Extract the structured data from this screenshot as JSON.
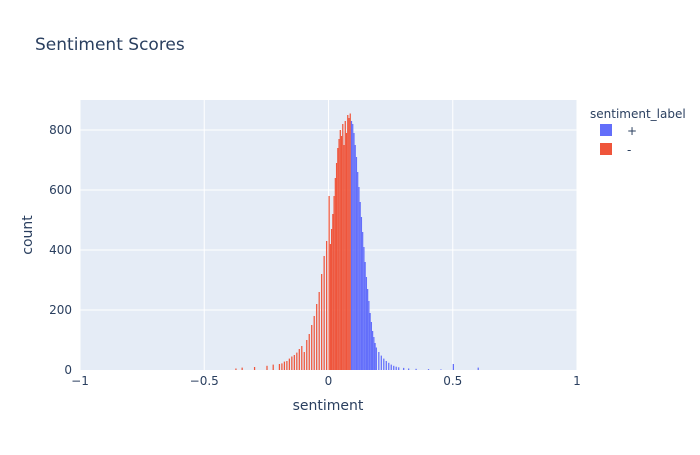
{
  "chart_data": {
    "type": "bar",
    "subtype": "histogram",
    "title": "Sentiment Scores",
    "xlabel": "sentiment",
    "ylabel": "count",
    "xlim": [
      -1,
      1
    ],
    "ylim": [
      0,
      900
    ],
    "x_ticks": [
      "−1",
      "−0.5",
      "0",
      "0.5",
      "1"
    ],
    "x_tick_values": [
      -1,
      -0.5,
      0,
      0.5,
      1
    ],
    "y_ticks": [
      "0",
      "200",
      "400",
      "600",
      "800"
    ],
    "y_tick_values": [
      0,
      200,
      400,
      600,
      800
    ],
    "grid": true,
    "legend": {
      "title": "sentiment_label",
      "placement": "top-right",
      "entries": [
        {
          "label": "+",
          "color": "#636efa"
        },
        {
          "label": "-",
          "color": "#ef553b"
        }
      ]
    },
    "bin_width": 0.005,
    "series": [
      {
        "name": "-",
        "color": "#ef553b",
        "x": [
          -0.375,
          -0.35,
          -0.3,
          -0.25,
          -0.225,
          -0.2,
          -0.19,
          -0.18,
          -0.17,
          -0.16,
          -0.15,
          -0.14,
          -0.13,
          -0.12,
          -0.11,
          -0.1,
          -0.09,
          -0.08,
          -0.07,
          -0.06,
          -0.05,
          -0.04,
          -0.03,
          -0.02,
          -0.01,
          0.0,
          0.005,
          0.01,
          0.015,
          0.02,
          0.025,
          0.03,
          0.035,
          0.04,
          0.045,
          0.05,
          0.055,
          0.06,
          0.065,
          0.07,
          0.075,
          0.08,
          0.085
        ],
        "values": [
          5,
          8,
          10,
          14,
          18,
          20,
          22,
          28,
          30,
          38,
          45,
          50,
          58,
          70,
          80,
          60,
          100,
          120,
          150,
          180,
          220,
          260,
          320,
          380,
          430,
          580,
          420,
          470,
          520,
          580,
          640,
          690,
          740,
          770,
          800,
          780,
          820,
          750,
          830,
          790,
          850,
          840,
          855
        ]
      },
      {
        "name": "+",
        "color": "#636efa",
        "x": [
          0.09,
          0.095,
          0.1,
          0.105,
          0.11,
          0.115,
          0.12,
          0.125,
          0.13,
          0.135,
          0.14,
          0.145,
          0.15,
          0.155,
          0.16,
          0.165,
          0.17,
          0.175,
          0.18,
          0.185,
          0.19,
          0.2,
          0.21,
          0.22,
          0.23,
          0.24,
          0.25,
          0.26,
          0.27,
          0.28,
          0.3,
          0.32,
          0.35,
          0.4,
          0.45,
          0.5,
          0.6
        ],
        "values": [
          830,
          820,
          790,
          750,
          710,
          660,
          610,
          560,
          510,
          460,
          410,
          360,
          310,
          270,
          230,
          190,
          160,
          130,
          110,
          90,
          75,
          60,
          48,
          38,
          30,
          24,
          18,
          14,
          11,
          9,
          7,
          5,
          4,
          3,
          2,
          20,
          8
        ]
      }
    ]
  }
}
